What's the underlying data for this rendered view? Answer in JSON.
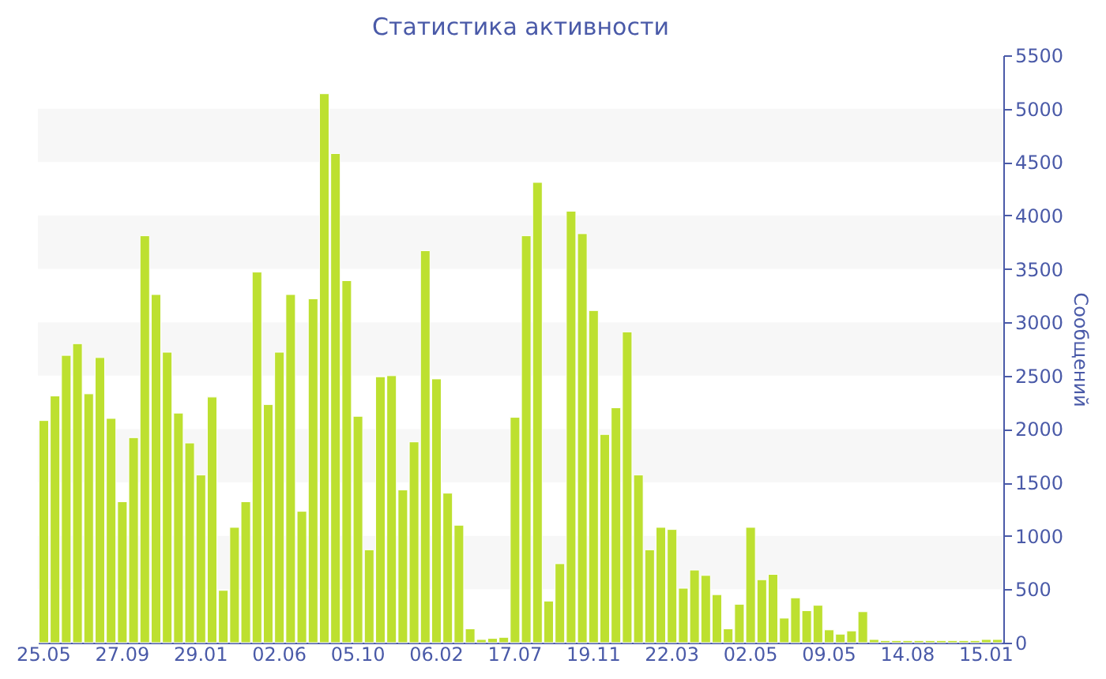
{
  "chart_data": {
    "type": "bar",
    "title": "Статистика активности",
    "ylabel": "Сообщений",
    "categories": [
      "25.05",
      null,
      null,
      null,
      null,
      null,
      null,
      "27.09",
      null,
      null,
      null,
      null,
      null,
      null,
      "29.01",
      null,
      null,
      null,
      null,
      null,
      null,
      "02.06",
      null,
      null,
      null,
      null,
      null,
      null,
      "05.10",
      null,
      null,
      null,
      null,
      null,
      null,
      "06.02",
      null,
      null,
      null,
      null,
      null,
      null,
      "17.07",
      null,
      null,
      null,
      null,
      null,
      null,
      "19.11",
      null,
      null,
      null,
      null,
      null,
      null,
      "22.03",
      null,
      null,
      null,
      null,
      null,
      null,
      "02.05",
      null,
      null,
      null,
      null,
      null,
      null,
      "09.05",
      null,
      null,
      null,
      null,
      null,
      null,
      "14.08",
      null,
      null,
      null,
      null,
      null,
      null,
      "15.01",
      null
    ],
    "values": [
      2080,
      2310,
      2690,
      2800,
      2330,
      2670,
      2100,
      1320,
      1920,
      3810,
      3260,
      2720,
      2150,
      1870,
      1570,
      2300,
      490,
      1080,
      1320,
      3470,
      2230,
      2720,
      3260,
      1230,
      3220,
      5140,
      4580,
      3390,
      2120,
      870,
      2490,
      2500,
      1430,
      1880,
      3670,
      2470,
      1400,
      1100,
      130,
      30,
      40,
      50,
      2110,
      3810,
      4310,
      390,
      740,
      4040,
      3830,
      3110,
      1950,
      2200,
      2910,
      1570,
      870,
      1080,
      1060,
      510,
      680,
      630,
      450,
      130,
      360,
      1080,
      590,
      640,
      230,
      420,
      300,
      350,
      120,
      80,
      110,
      290,
      30,
      20,
      20,
      20,
      20,
      20,
      20,
      20,
      20,
      20,
      30,
      30
    ],
    "color": "#bde030",
    "ylim": [
      0,
      5500
    ],
    "yticks": [
      0,
      500,
      1000,
      1500,
      2000,
      2500,
      3000,
      3500,
      4000,
      4500,
      5000,
      5500
    ],
    "bands": [
      {
        "axis": "y",
        "from": 500,
        "to": 1000,
        "color": "#f7f7f7"
      },
      {
        "axis": "y",
        "from": 1500,
        "to": 2000,
        "color": "#f7f7f7"
      },
      {
        "axis": "y",
        "from": 2500,
        "to": 3000,
        "color": "#f7f7f7"
      },
      {
        "axis": "y",
        "from": 3500,
        "to": 4000,
        "color": "#f7f7f7"
      },
      {
        "axis": "y",
        "from": 4500,
        "to": 5000,
        "color": "#f7f7f7"
      }
    ]
  }
}
